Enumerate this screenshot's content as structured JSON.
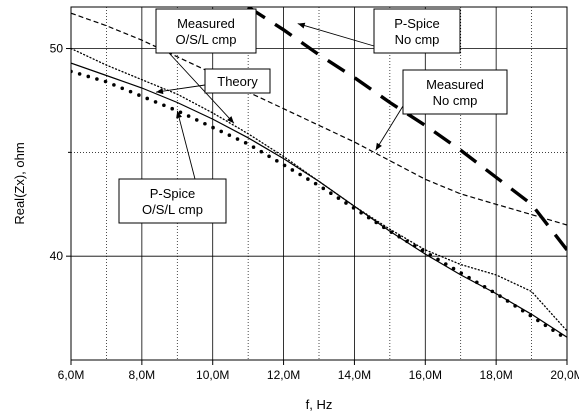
{
  "chart_data": {
    "type": "line",
    "xlabel": "f, Hz",
    "ylabel": "Real(Zx), ohm",
    "xlim": [
      6,
      20
    ],
    "ylim": [
      35,
      52
    ],
    "x_major_ticks": [
      {
        "value": 6,
        "label": "6,0M"
      },
      {
        "value": 8,
        "label": "8,0M"
      },
      {
        "value": 10,
        "label": "10,0M"
      },
      {
        "value": 12,
        "label": "12,0M"
      },
      {
        "value": 14,
        "label": "14,0M"
      },
      {
        "value": 16,
        "label": "16,0M"
      },
      {
        "value": 18,
        "label": "18,0M"
      },
      {
        "value": 20,
        "label": "20,0M"
      }
    ],
    "x_minor_ticks": [
      7,
      9,
      11,
      13,
      15,
      17,
      19
    ],
    "y_major_ticks": [
      {
        "value": 40,
        "label": "40"
      },
      {
        "value": 50,
        "label": "50"
      }
    ],
    "y_minor_ticks": [
      45
    ],
    "grid": true,
    "series": [
      {
        "key": "theory",
        "line_style": "solid",
        "points": [
          [
            6.0,
            49.3
          ],
          [
            7.0,
            48.7
          ],
          [
            8.0,
            48.1
          ],
          [
            9.0,
            47.4
          ],
          [
            10.0,
            46.6
          ],
          [
            11.0,
            45.7
          ],
          [
            12.0,
            44.7
          ],
          [
            13.0,
            43.6
          ],
          [
            14.0,
            42.4
          ],
          [
            15.0,
            41.2
          ],
          [
            16.0,
            40.1
          ],
          [
            17.0,
            39.1
          ],
          [
            18.0,
            38.2
          ],
          [
            19.0,
            37.2
          ],
          [
            20.0,
            36.1
          ]
        ]
      },
      {
        "key": "measured_osl",
        "line_style": "dotted",
        "points": [
          [
            6.0,
            50.0
          ],
          [
            7.0,
            49.2
          ],
          [
            8.0,
            48.5
          ],
          [
            9.0,
            47.8
          ],
          [
            10.0,
            46.9
          ],
          [
            11.0,
            45.9
          ],
          [
            12.0,
            44.8
          ],
          [
            13.0,
            43.6
          ],
          [
            14.0,
            42.4
          ],
          [
            15.0,
            41.3
          ],
          [
            16.0,
            40.3
          ],
          [
            17.0,
            39.6
          ],
          [
            18.0,
            39.1
          ],
          [
            19.0,
            38.3
          ],
          [
            20.0,
            36.4
          ]
        ]
      },
      {
        "key": "pspice_osl",
        "line_style": "dots",
        "points": [
          [
            6.0,
            48.9
          ],
          [
            7.0,
            48.4
          ],
          [
            8.0,
            47.7
          ],
          [
            9.0,
            47.0
          ],
          [
            10.0,
            46.2
          ],
          [
            11.0,
            45.4
          ],
          [
            12.0,
            44.4
          ],
          [
            13.0,
            43.4
          ],
          [
            14.0,
            42.3
          ],
          [
            15.0,
            41.2
          ],
          [
            16.0,
            40.2
          ],
          [
            17.0,
            39.2
          ],
          [
            18.0,
            38.2
          ],
          [
            19.0,
            37.1
          ],
          [
            20.0,
            36.0
          ]
        ]
      },
      {
        "key": "measured_nocmp",
        "line_style": "short-dash",
        "points": [
          [
            6.0,
            51.7
          ],
          [
            7.0,
            51.1
          ],
          [
            8.0,
            50.4
          ],
          [
            9.0,
            49.6
          ],
          [
            10.0,
            48.8
          ],
          [
            11.0,
            47.9
          ],
          [
            12.0,
            47.1
          ],
          [
            13.0,
            46.3
          ],
          [
            14.0,
            45.5
          ],
          [
            15.0,
            44.6
          ],
          [
            16.0,
            43.7
          ],
          [
            17.0,
            43.0
          ],
          [
            18.0,
            42.5
          ],
          [
            19.0,
            42.0
          ],
          [
            20.0,
            41.5
          ]
        ]
      },
      {
        "key": "pspice_nocmp",
        "line_style": "long-dash",
        "points": [
          [
            11.0,
            52.0
          ],
          [
            12.0,
            50.9
          ],
          [
            13.0,
            49.7
          ],
          [
            14.0,
            48.6
          ],
          [
            15.0,
            47.4
          ],
          [
            16.0,
            46.3
          ],
          [
            17.0,
            45.1
          ],
          [
            18.0,
            43.8
          ],
          [
            19.0,
            42.5
          ],
          [
            20.0,
            40.3
          ]
        ]
      }
    ],
    "annotations": [
      {
        "lines": [
          "Measured",
          "O/S/L cmp"
        ],
        "pointer": "measured_osl"
      },
      {
        "lines": [
          "Theory"
        ],
        "pointer": "theory"
      },
      {
        "lines": [
          "P-Spice",
          "No cmp"
        ],
        "pointer": "pspice_nocmp"
      },
      {
        "lines": [
          "Measured",
          "No cmp"
        ],
        "pointer": "measured_nocmp"
      },
      {
        "lines": [
          "P-Spice",
          "O/S/L cmp"
        ],
        "pointer": "pspice_osl"
      }
    ]
  }
}
